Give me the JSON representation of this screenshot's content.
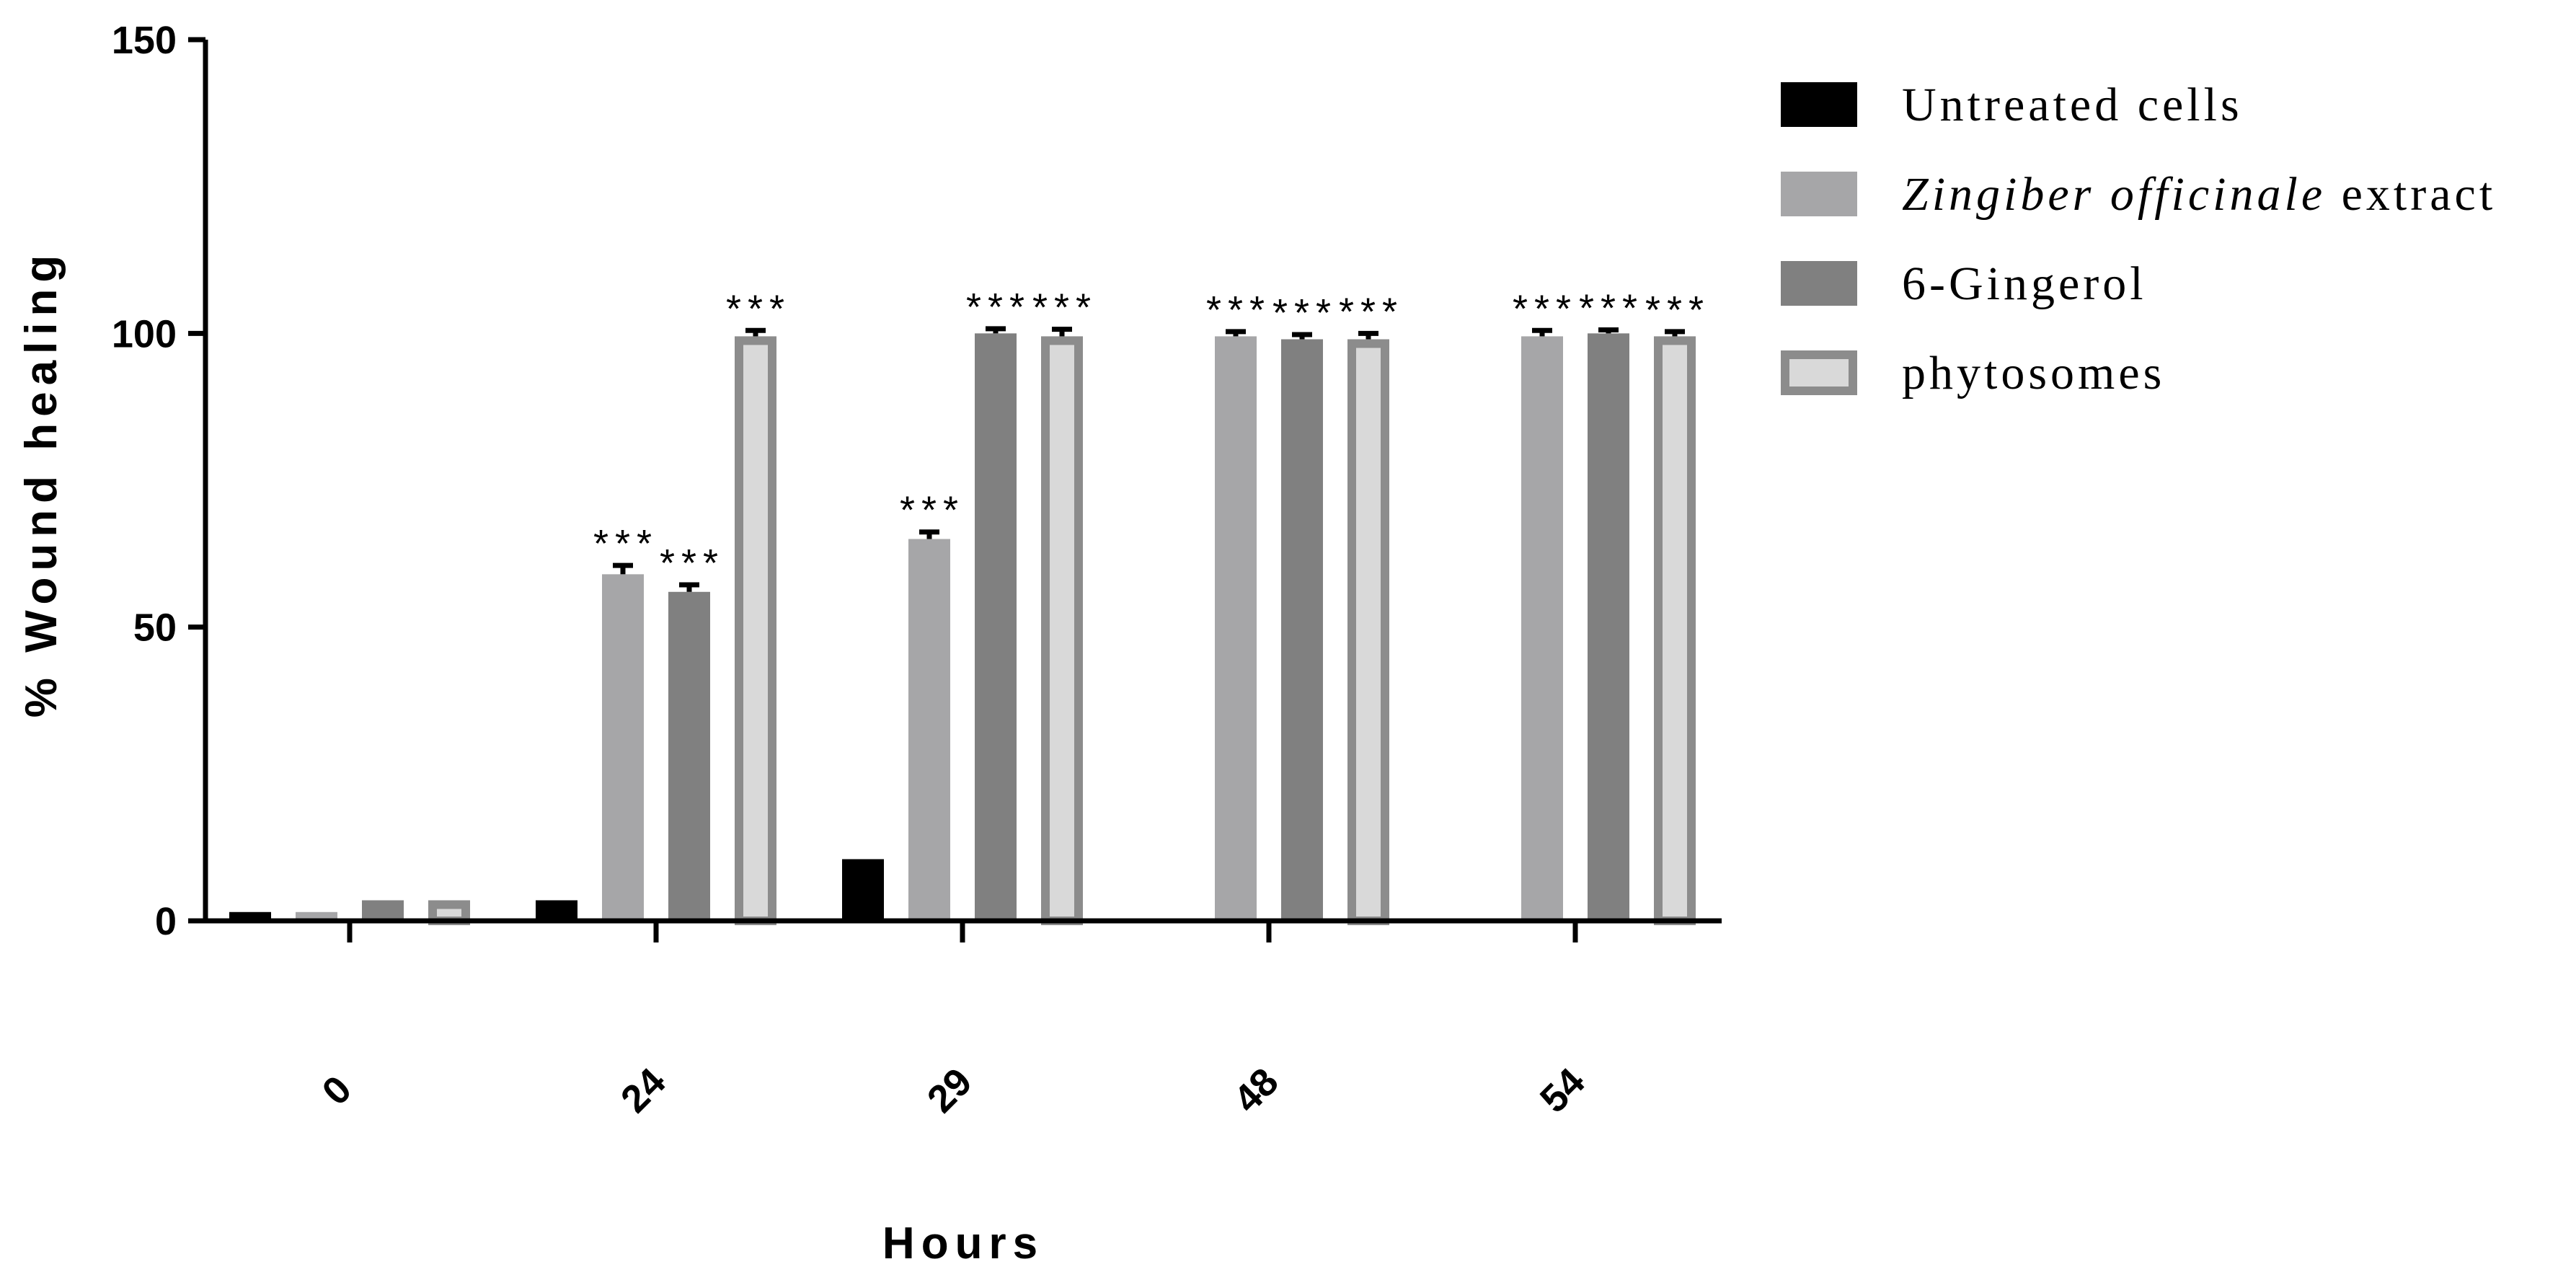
{
  "chart_data": {
    "type": "bar",
    "title": "",
    "xlabel": "Hours",
    "ylabel": "% Wound healing",
    "ylim": [
      0,
      150
    ],
    "yticks": [
      0,
      50,
      100,
      150
    ],
    "categories": [
      "0",
      "24",
      "29",
      "48",
      "54"
    ],
    "series": [
      {
        "name": "Untreated cells",
        "name_parts": [
          {
            "text": "Untreated cells",
            "italic": false
          }
        ],
        "fill": "#000000",
        "stroke": "#000000",
        "values": [
          1.5,
          3.5,
          10.5,
          0,
          0
        ],
        "errors": [
          0,
          0,
          0,
          0,
          0
        ],
        "sig": [
          "",
          "",
          "",
          "",
          ""
        ]
      },
      {
        "name": "Zingiber officinale extract",
        "name_parts": [
          {
            "text": "Zingiber officinale",
            "italic": true
          },
          {
            "text": " extract",
            "italic": false
          }
        ],
        "fill": "#a6a6a8",
        "stroke": "#a6a6a8",
        "values": [
          1.5,
          59,
          65,
          99.5,
          99.5
        ],
        "errors": [
          0,
          1.5,
          1.2,
          0.8,
          1
        ],
        "sig": [
          "",
          "***",
          "***",
          "***",
          "***"
        ]
      },
      {
        "name": "6-Gingerol",
        "name_parts": [
          {
            "text": "6-Gingerol",
            "italic": false
          }
        ],
        "fill": "#808080",
        "stroke": "#808080",
        "values": [
          3.5,
          56,
          100,
          99,
          100
        ],
        "errors": [
          0,
          1.2,
          0.8,
          0.8,
          0.6
        ],
        "sig": [
          "",
          "***",
          "***",
          "***",
          "***"
        ]
      },
      {
        "name": "phytosomes",
        "name_parts": [
          {
            "text": "phytosomes",
            "italic": false
          }
        ],
        "fill": "#d9d9d9",
        "stroke": "#8c8c8c",
        "values": [
          3.5,
          99.5,
          99.5,
          99,
          99.5
        ],
        "errors": [
          0,
          1,
          1.2,
          1,
          0.8
        ],
        "sig": [
          "",
          "***",
          "***",
          "***",
          "***"
        ]
      }
    ]
  }
}
